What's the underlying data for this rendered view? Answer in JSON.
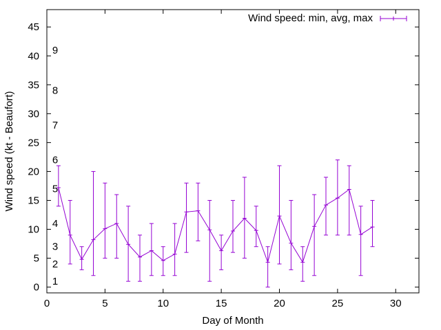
{
  "chart_data": {
    "type": "line",
    "title": "",
    "xlabel": "Day of Month",
    "ylabel": "Wind speed (kt - Beaufort)",
    "xlim": [
      0,
      32
    ],
    "ylim": [
      -1,
      48
    ],
    "x_ticks": [
      0,
      5,
      10,
      15,
      20,
      25,
      30
    ],
    "y_ticks": [
      0,
      5,
      10,
      15,
      20,
      25,
      30,
      35,
      40,
      45
    ],
    "grid": false,
    "legend_position": "top-right",
    "series_color": "#9400d3",
    "series": [
      {
        "name": "Wind speed: min, avg, max",
        "x": [
          1,
          2,
          3,
          4,
          5,
          6,
          7,
          8,
          9,
          10,
          11,
          12,
          13,
          14,
          15,
          16,
          17,
          18,
          19,
          20,
          21,
          22,
          23,
          24,
          25,
          26,
          27,
          28
        ],
        "avg": [
          17.2,
          9.0,
          4.8,
          8.2,
          10.1,
          11.0,
          7.4,
          5.2,
          6.3,
          4.6,
          5.7,
          13.0,
          13.2,
          9.9,
          6.3,
          9.7,
          11.9,
          9.8,
          4.3,
          12.3,
          7.6,
          4.3,
          10.5,
          14.2,
          15.4,
          16.9,
          9.1,
          10.4
        ],
        "min": [
          14,
          4,
          3,
          2,
          5,
          5,
          1,
          1,
          2,
          2,
          2,
          6,
          8,
          1,
          3,
          6,
          5,
          7,
          0,
          4,
          3,
          1,
          2,
          9,
          9,
          9,
          2,
          7
        ],
        "max": [
          21,
          15,
          7,
          20,
          18,
          16,
          14,
          9,
          11,
          7,
          11,
          18,
          18,
          15,
          9,
          15,
          19,
          14,
          7,
          21,
          15,
          7,
          16,
          19,
          22,
          21,
          14,
          15
        ]
      }
    ],
    "annotations": [
      {
        "text": "1",
        "y": 1
      },
      {
        "text": "2",
        "y": 4
      },
      {
        "text": "3",
        "y": 7
      },
      {
        "text": "4",
        "y": 11
      },
      {
        "text": "5",
        "y": 17
      },
      {
        "text": "6",
        "y": 22
      },
      {
        "text": "7",
        "y": 28
      },
      {
        "text": "8",
        "y": 34
      },
      {
        "text": "9",
        "y": 41
      }
    ]
  }
}
